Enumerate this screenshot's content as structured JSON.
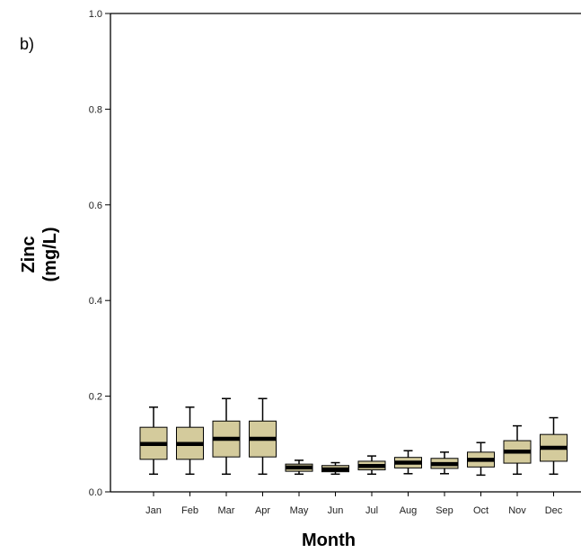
{
  "panel_label": "b)",
  "chart_data": {
    "type": "boxplot",
    "ylabel_line1": "Zinc",
    "ylabel_line2": "(mg/L)",
    "xlabel": "Month",
    "ylim": [
      0.0,
      1.0
    ],
    "yticks": [
      "0.0",
      "0.2",
      "0.4",
      "0.6",
      "0.8",
      "1.0"
    ],
    "categories": [
      "Jan",
      "Feb",
      "Mar",
      "Apr",
      "May",
      "Jun",
      "Jul",
      "Aug",
      "Sep",
      "Oct",
      "Nov",
      "Dec"
    ],
    "boxes": [
      {
        "month": "Jan",
        "min": 0.037,
        "q1": 0.068,
        "median": 0.1,
        "q3": 0.135,
        "max": 0.177
      },
      {
        "month": "Feb",
        "min": 0.037,
        "q1": 0.068,
        "median": 0.1,
        "q3": 0.135,
        "max": 0.177
      },
      {
        "month": "Mar",
        "min": 0.037,
        "q1": 0.073,
        "median": 0.111,
        "q3": 0.148,
        "max": 0.195
      },
      {
        "month": "Apr",
        "min": 0.037,
        "q1": 0.073,
        "median": 0.111,
        "q3": 0.148,
        "max": 0.195
      },
      {
        "month": "May",
        "min": 0.037,
        "q1": 0.043,
        "median": 0.051,
        "q3": 0.058,
        "max": 0.066
      },
      {
        "month": "Jun",
        "min": 0.037,
        "q1": 0.042,
        "median": 0.047,
        "q3": 0.055,
        "max": 0.061
      },
      {
        "month": "Jul",
        "min": 0.037,
        "q1": 0.046,
        "median": 0.054,
        "q3": 0.064,
        "max": 0.075
      },
      {
        "month": "Aug",
        "min": 0.038,
        "q1": 0.05,
        "median": 0.061,
        "q3": 0.072,
        "max": 0.086
      },
      {
        "month": "Sep",
        "min": 0.038,
        "q1": 0.049,
        "median": 0.058,
        "q3": 0.07,
        "max": 0.083
      },
      {
        "month": "Oct",
        "min": 0.035,
        "q1": 0.052,
        "median": 0.067,
        "q3": 0.083,
        "max": 0.103
      },
      {
        "month": "Nov",
        "min": 0.037,
        "q1": 0.06,
        "median": 0.084,
        "q3": 0.107,
        "max": 0.138
      },
      {
        "month": "Dec",
        "min": 0.037,
        "q1": 0.064,
        "median": 0.092,
        "q3": 0.12,
        "max": 0.155
      }
    ],
    "colors": {
      "box_fill": "#d4cb9c",
      "box_stroke": "#000000",
      "median": "#000000",
      "axis": "#000000"
    },
    "grid": false
  }
}
